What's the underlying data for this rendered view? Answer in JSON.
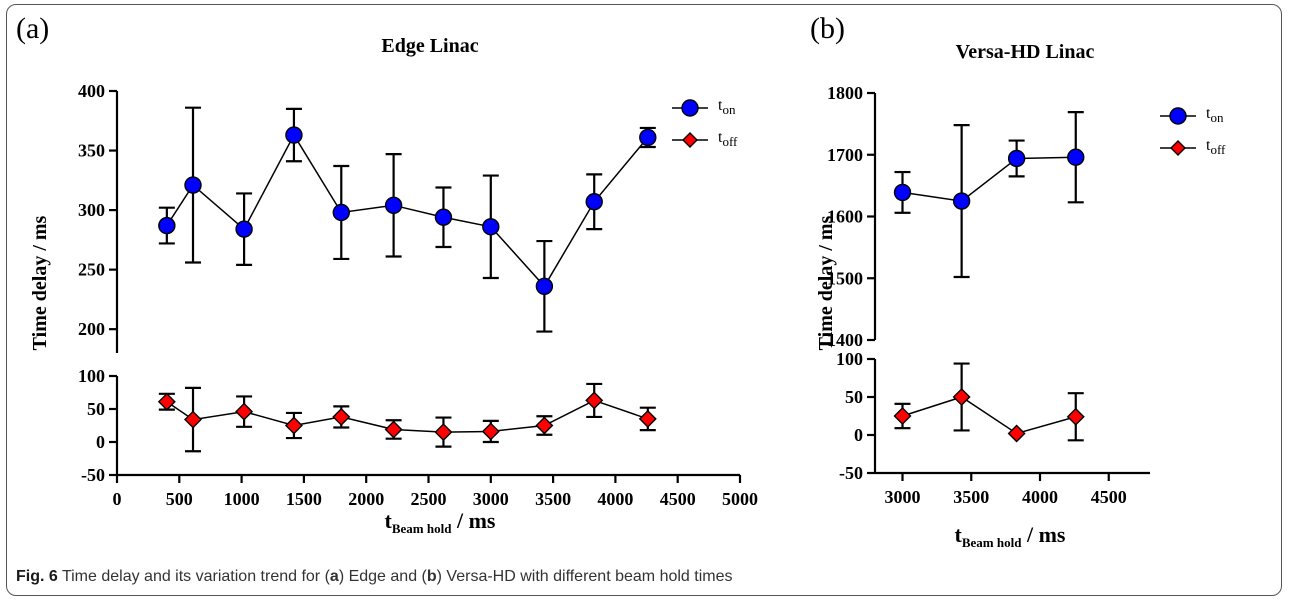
{
  "chart_data": [
    {
      "type": "scatter",
      "panel_label": "(a)",
      "title": "Edge Linac",
      "xlabel": "t",
      "xlabel_sub": "Beam hold",
      "xlabel_suffix": " / ms",
      "ylabel": "Time delay / ms",
      "xlim": [
        0,
        5000
      ],
      "x_ticks": [
        0,
        500,
        1000,
        1500,
        2000,
        2500,
        3000,
        3500,
        4000,
        4500,
        5000
      ],
      "y_upper_range": [
        180,
        400
      ],
      "y_upper_ticks": [
        200,
        250,
        300,
        350,
        400
      ],
      "y_lower_range": [
        -50,
        100
      ],
      "y_lower_ticks": [
        -50,
        0,
        50,
        100
      ],
      "grid": false,
      "legend_position": "top-right",
      "series": [
        {
          "name": "t",
          "name_sub": "on",
          "marker": "circle",
          "color": "#0000ff",
          "x": [
            400,
            610,
            1020,
            1420,
            1800,
            2220,
            2620,
            3000,
            3430,
            3830,
            4260
          ],
          "y": [
            287,
            321,
            284,
            363,
            298,
            304,
            294,
            286,
            236,
            307,
            361
          ],
          "err": [
            15,
            65,
            30,
            22,
            39,
            43,
            25,
            43,
            38,
            23,
            8
          ]
        },
        {
          "name": "t",
          "name_sub": "off",
          "marker": "diamond",
          "color": "#ff0000",
          "x": [
            400,
            610,
            1020,
            1420,
            1800,
            2220,
            2620,
            3000,
            3430,
            3830,
            4260
          ],
          "y": [
            61,
            34,
            46,
            25,
            38,
            19,
            15,
            16,
            25,
            63,
            35
          ],
          "err": [
            12,
            48,
            23,
            19,
            16,
            14,
            22,
            16,
            14,
            25,
            17
          ]
        }
      ]
    },
    {
      "type": "scatter",
      "panel_label": "(b)",
      "title": "Versa-HD Linac",
      "xlabel": "t",
      "xlabel_sub": "Beam hold",
      "xlabel_suffix": " / ms",
      "ylabel": "Time delay / ms",
      "xlim": [
        2800,
        4800
      ],
      "x_ticks": [
        3000,
        3500,
        4000,
        4500
      ],
      "y_upper_range": [
        1400,
        1800
      ],
      "y_upper_ticks": [
        1400,
        1500,
        1600,
        1700,
        1800
      ],
      "y_lower_range": [
        -50,
        100
      ],
      "y_lower_ticks": [
        -50,
        0,
        50,
        100
      ],
      "grid": false,
      "legend_position": "top-right",
      "series": [
        {
          "name": "t",
          "name_sub": "on",
          "marker": "circle",
          "color": "#0000ff",
          "x": [
            3000,
            3430,
            3830,
            4260
          ],
          "y": [
            1639,
            1625,
            1694,
            1696
          ],
          "err": [
            33,
            123,
            29,
            73
          ]
        },
        {
          "name": "t",
          "name_sub": "off",
          "marker": "diamond",
          "color": "#ff0000",
          "x": [
            3000,
            3430,
            3830,
            4260
          ],
          "y": [
            25,
            50,
            2,
            24
          ],
          "err": [
            16,
            44,
            0,
            31
          ]
        }
      ]
    }
  ],
  "caption": {
    "fig_label": "Fig. 6",
    "text_1": " Time delay and its variation trend for (",
    "bold_a": "a",
    "text_2": ") Edge and (",
    "bold_b": "b",
    "text_3": ") Versa-HD with different beam hold times"
  }
}
